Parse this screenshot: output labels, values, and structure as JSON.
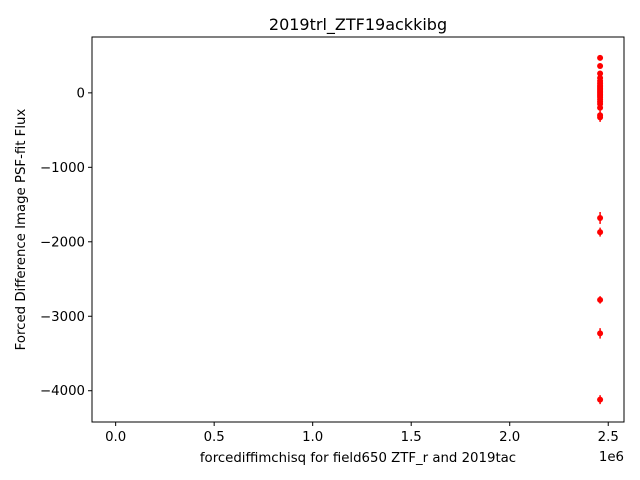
{
  "chart_data": {
    "type": "scatter",
    "title": "2019trl_ZTF19ackkibg",
    "xlabel": "forcediffimchisq for field650 ZTF_r and 2019tac",
    "ylabel": "Forced Difference Image PSF-fit Flux",
    "x_offset_label": "1e6",
    "xlim": [
      -120000,
      2580000
    ],
    "ylim": [
      -4420,
      750
    ],
    "x_ticks": [
      0,
      500000,
      1000000,
      1500000,
      2000000,
      2500000
    ],
    "x_tick_labels": [
      "0.0",
      "0.5",
      "1.0",
      "1.5",
      "2.0",
      "2.5"
    ],
    "y_ticks": [
      -4000,
      -3000,
      -2000,
      -1000,
      0
    ],
    "y_tick_labels": [
      "−4000",
      "−3000",
      "−2000",
      "−1000",
      "0"
    ],
    "grid": false,
    "marker_color": "#ff0000",
    "points": [
      {
        "x": 2458650,
        "y": 470,
        "err": 25
      },
      {
        "x": 2458650,
        "y": 360,
        "err": 30
      },
      {
        "x": 2458650,
        "y": 260,
        "err": 30
      },
      {
        "x": 2458650,
        "y": 200,
        "err": 30
      },
      {
        "x": 2458650,
        "y": 160,
        "err": 30
      },
      {
        "x": 2458650,
        "y": 130,
        "err": 25
      },
      {
        "x": 2458650,
        "y": 100,
        "err": 25
      },
      {
        "x": 2458650,
        "y": 80,
        "err": 25
      },
      {
        "x": 2458650,
        "y": 60,
        "err": 25
      },
      {
        "x": 2458650,
        "y": 40,
        "err": 25
      },
      {
        "x": 2458650,
        "y": 20,
        "err": 25
      },
      {
        "x": 2458650,
        "y": 0,
        "err": 25
      },
      {
        "x": 2458650,
        "y": -20,
        "err": 25
      },
      {
        "x": 2458650,
        "y": -40,
        "err": 25
      },
      {
        "x": 2458650,
        "y": -60,
        "err": 25
      },
      {
        "x": 2458650,
        "y": -90,
        "err": 30
      },
      {
        "x": 2458650,
        "y": -120,
        "err": 30
      },
      {
        "x": 2458650,
        "y": -150,
        "err": 30
      },
      {
        "x": 2458650,
        "y": -200,
        "err": 40
      },
      {
        "x": 2458650,
        "y": -300,
        "err": 60
      },
      {
        "x": 2458650,
        "y": -330,
        "err": 60
      },
      {
        "x": 2458650,
        "y": -1680,
        "err": 80
      },
      {
        "x": 2458650,
        "y": -1870,
        "err": 60
      },
      {
        "x": 2458650,
        "y": -2780,
        "err": 50
      },
      {
        "x": 2458650,
        "y": -3230,
        "err": 70
      },
      {
        "x": 2458650,
        "y": -4120,
        "err": 60
      }
    ]
  }
}
